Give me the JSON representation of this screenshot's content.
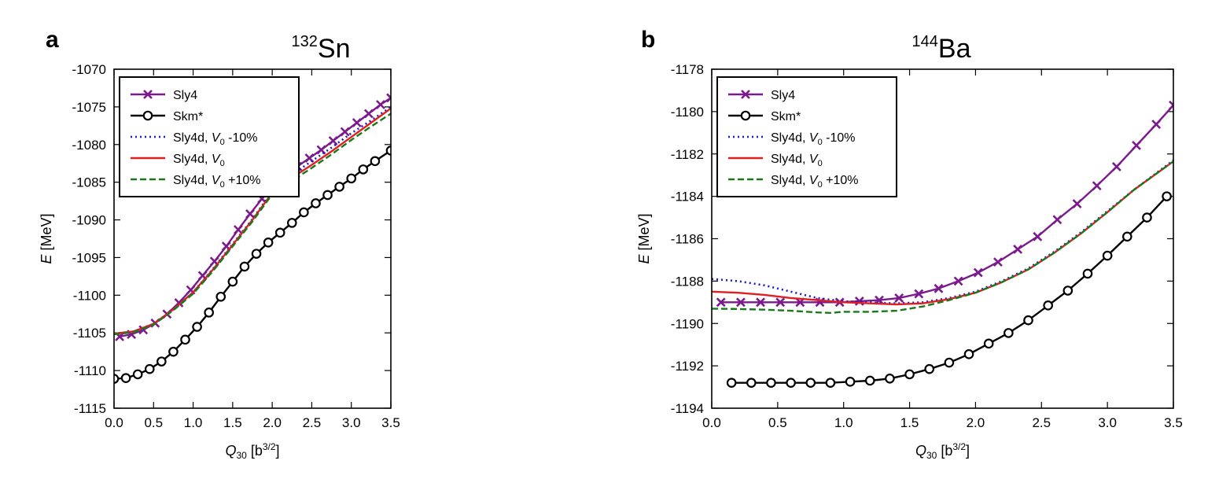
{
  "chart_data": [
    {
      "type": "line",
      "panel": "a",
      "title": {
        "mass": "132",
        "symbol": "Sn"
      },
      "xlabel": {
        "var": "Q",
        "sub": "30",
        "unit_pre": " [b",
        "unit_sup": "3/2",
        "unit_post": "]"
      },
      "ylabel": {
        "var": "E",
        "rest": " [MeV]"
      },
      "xlim": [
        0,
        3.5
      ],
      "ylim": [
        -1115,
        -1070
      ],
      "xticks": [
        0,
        0.5,
        1,
        1.5,
        2,
        2.5,
        3,
        3.5
      ],
      "xtick_labels": [
        "0.0",
        "0.5",
        "1.0",
        "1.5",
        "2.0",
        "2.5",
        "3.0",
        "3.5"
      ],
      "yticks": [
        -1115,
        -1110,
        -1105,
        -1100,
        -1095,
        -1090,
        -1085,
        -1080,
        -1075,
        -1070
      ],
      "ytick_labels": [
        "-1115",
        "-1110",
        "-1105",
        "-1100",
        "-1095",
        "-1090",
        "-1085",
        "-1080",
        "-1075",
        "-1070"
      ],
      "legend_position": "top-left",
      "series": [
        {
          "id": "sly4",
          "legend": {
            "main": "Sly4"
          },
          "color": "#7b1a8c",
          "dash": "solid",
          "marker": "x",
          "x": [
            0.07,
            0.22,
            0.37,
            0.52,
            0.67,
            0.82,
            0.97,
            1.12,
            1.27,
            1.42,
            1.57,
            1.72,
            1.87,
            2.02,
            2.17,
            2.32,
            2.47,
            2.62,
            2.77,
            2.92,
            3.07,
            3.22,
            3.37,
            3.5
          ],
          "y": [
            -1105.5,
            -1105.2,
            -1104.6,
            -1103.7,
            -1102.5,
            -1101.0,
            -1099.3,
            -1097.4,
            -1095.5,
            -1093.5,
            -1091.3,
            -1089.2,
            -1087.2,
            -1085.5,
            -1084.1,
            -1082.9,
            -1081.8,
            -1080.7,
            -1079.5,
            -1078.3,
            -1077.1,
            -1075.9,
            -1074.7,
            -1073.8
          ]
        },
        {
          "id": "skm",
          "legend": {
            "main": "Skm*"
          },
          "color": "#000000",
          "dash": "solid",
          "marker": "o",
          "x": [
            0.0,
            0.15,
            0.3,
            0.45,
            0.6,
            0.75,
            0.9,
            1.05,
            1.2,
            1.35,
            1.5,
            1.65,
            1.8,
            1.95,
            2.1,
            2.25,
            2.4,
            2.55,
            2.7,
            2.85,
            3.0,
            3.15,
            3.3,
            3.5
          ],
          "y": [
            -1111.1,
            -1111.0,
            -1110.5,
            -1109.8,
            -1108.8,
            -1107.5,
            -1105.9,
            -1104.2,
            -1102.3,
            -1100.2,
            -1098.2,
            -1096.2,
            -1094.5,
            -1093.0,
            -1091.7,
            -1090.4,
            -1089.0,
            -1087.8,
            -1086.7,
            -1085.6,
            -1084.5,
            -1083.3,
            -1082.2,
            -1080.8
          ]
        },
        {
          "id": "sly4d_m10",
          "legend": {
            "main": "Sly4d, ",
            "var": "V",
            "sub": "0",
            "post": " -10%"
          },
          "color": "#1a1acc",
          "dash": "dotted",
          "marker": "none",
          "x": [
            0.0,
            0.25,
            0.5,
            0.75,
            1.0,
            1.25,
            1.5,
            1.75,
            2.0,
            2.25,
            2.5,
            2.75,
            3.0,
            3.25,
            3.5
          ],
          "y": [
            -1105.1,
            -1104.8,
            -1103.8,
            -1101.9,
            -1099.6,
            -1096.5,
            -1093.2,
            -1089.9,
            -1086.2,
            -1084.0,
            -1082.2,
            -1080.4,
            -1078.5,
            -1076.8,
            -1075.0
          ]
        },
        {
          "id": "sly4d",
          "legend": {
            "main": "Sly4d, ",
            "var": "V",
            "sub": "0",
            "post": ""
          },
          "color": "#e02020",
          "dash": "solid",
          "marker": "none",
          "x": [
            0.0,
            0.25,
            0.5,
            0.75,
            1.0,
            1.25,
            1.5,
            1.75,
            2.0,
            2.25,
            2.5,
            2.75,
            3.0,
            3.25,
            3.5
          ],
          "y": [
            -1105.1,
            -1104.8,
            -1103.8,
            -1101.9,
            -1099.6,
            -1096.6,
            -1093.3,
            -1090.0,
            -1086.4,
            -1084.4,
            -1082.7,
            -1080.9,
            -1079.0,
            -1077.1,
            -1075.2
          ]
        },
        {
          "id": "sly4d_p10",
          "legend": {
            "main": "Sly4d, ",
            "var": "V",
            "sub": "0",
            "post": " +10%"
          },
          "color": "#1a7a1a",
          "dash": "dashed",
          "marker": "none",
          "x": [
            0.0,
            0.25,
            0.5,
            0.75,
            1.0,
            1.25,
            1.5,
            1.75,
            2.0,
            2.25,
            2.5,
            2.75,
            3.0,
            3.25,
            3.5
          ],
          "y": [
            -1105.2,
            -1104.9,
            -1103.9,
            -1102.0,
            -1099.8,
            -1096.8,
            -1093.5,
            -1090.2,
            -1086.6,
            -1084.8,
            -1083.1,
            -1081.3,
            -1079.4,
            -1077.6,
            -1075.9
          ]
        }
      ]
    },
    {
      "type": "line",
      "panel": "b",
      "title": {
        "mass": "144",
        "symbol": "Ba"
      },
      "xlabel": {
        "var": "Q",
        "sub": "30",
        "unit_pre": " [b",
        "unit_sup": "3/2",
        "unit_post": "]"
      },
      "ylabel": {
        "var": "E",
        "rest": " [MeV]"
      },
      "xlim": [
        0,
        3.5
      ],
      "ylim": [
        -1194,
        -1178
      ],
      "xticks": [
        0,
        0.5,
        1,
        1.5,
        2,
        2.5,
        3,
        3.5
      ],
      "xtick_labels": [
        "0.0",
        "0.5",
        "1.0",
        "1.5",
        "2.0",
        "2.5",
        "3.0",
        "3.5"
      ],
      "yticks": [
        -1194,
        -1192,
        -1190,
        -1188,
        -1186,
        -1184,
        -1182,
        -1180,
        -1178
      ],
      "ytick_labels": [
        "-1194",
        "-1192",
        "-1190",
        "-1188",
        "-1186",
        "-1184",
        "-1182",
        "-1180",
        "-1178"
      ],
      "legend_position": "top-left",
      "series": [
        {
          "id": "sly4",
          "legend": {
            "main": "Sly4"
          },
          "color": "#7b1a8c",
          "dash": "solid",
          "marker": "x",
          "x": [
            0.07,
            0.22,
            0.37,
            0.52,
            0.67,
            0.82,
            0.97,
            1.12,
            1.27,
            1.42,
            1.57,
            1.72,
            1.87,
            2.02,
            2.17,
            2.32,
            2.47,
            2.62,
            2.77,
            2.92,
            3.07,
            3.22,
            3.37,
            3.5
          ],
          "y": [
            -1189.0,
            -1189.0,
            -1189.0,
            -1189.0,
            -1189.0,
            -1189.0,
            -1189.0,
            -1188.95,
            -1188.9,
            -1188.8,
            -1188.6,
            -1188.35,
            -1188.0,
            -1187.6,
            -1187.1,
            -1186.5,
            -1185.9,
            -1185.1,
            -1184.35,
            -1183.5,
            -1182.6,
            -1181.6,
            -1180.6,
            -1179.7
          ]
        },
        {
          "id": "skm",
          "legend": {
            "main": "Skm*"
          },
          "color": "#000000",
          "dash": "solid",
          "marker": "o",
          "x": [
            0.15,
            0.3,
            0.45,
            0.6,
            0.75,
            0.9,
            1.05,
            1.2,
            1.35,
            1.5,
            1.65,
            1.8,
            1.95,
            2.1,
            2.25,
            2.4,
            2.55,
            2.7,
            2.85,
            3.0,
            3.15,
            3.3,
            3.45
          ],
          "y": [
            -1192.8,
            -1192.8,
            -1192.8,
            -1192.8,
            -1192.8,
            -1192.8,
            -1192.75,
            -1192.7,
            -1192.6,
            -1192.4,
            -1192.15,
            -1191.85,
            -1191.45,
            -1190.95,
            -1190.45,
            -1189.85,
            -1189.15,
            -1188.45,
            -1187.65,
            -1186.8,
            -1185.9,
            -1185.0,
            -1184.0
          ]
        },
        {
          "id": "sly4d_m10",
          "legend": {
            "main": "Sly4d, ",
            "var": "V",
            "sub": "0",
            "post": " -10%"
          },
          "color": "#1a1acc",
          "dash": "dotted",
          "marker": "none",
          "x": [
            0.0,
            0.2,
            0.4,
            0.6,
            0.8,
            1.0,
            1.2,
            1.4,
            1.6,
            1.8,
            2.0,
            2.2,
            2.4,
            2.6,
            2.8,
            3.0,
            3.2,
            3.5
          ],
          "y": [
            -1187.9,
            -1188.0,
            -1188.2,
            -1188.5,
            -1188.8,
            -1188.95,
            -1189.0,
            -1189.05,
            -1189.0,
            -1188.8,
            -1188.5,
            -1188.0,
            -1187.4,
            -1186.6,
            -1185.7,
            -1184.7,
            -1183.7,
            -1182.3
          ]
        },
        {
          "id": "sly4d",
          "legend": {
            "main": "Sly4d, ",
            "var": "V",
            "sub": "0",
            "post": ""
          },
          "color": "#e02020",
          "dash": "solid",
          "marker": "none",
          "x": [
            0.0,
            0.2,
            0.4,
            0.6,
            0.8,
            1.0,
            1.2,
            1.4,
            1.6,
            1.8,
            2.0,
            2.2,
            2.4,
            2.6,
            2.8,
            3.0,
            3.2,
            3.5
          ],
          "y": [
            -1188.5,
            -1188.55,
            -1188.65,
            -1188.8,
            -1188.9,
            -1189.0,
            -1189.05,
            -1189.1,
            -1189.05,
            -1188.85,
            -1188.55,
            -1188.05,
            -1187.45,
            -1186.65,
            -1185.75,
            -1184.75,
            -1183.7,
            -1182.35
          ]
        },
        {
          "id": "sly4d_p10",
          "legend": {
            "main": "Sly4d, ",
            "var": "V",
            "sub": "0",
            "post": " +10%"
          },
          "color": "#1a7a1a",
          "dash": "dashed",
          "marker": "none",
          "x": [
            0.0,
            0.2,
            0.4,
            0.6,
            0.8,
            0.9,
            1.0,
            1.2,
            1.4,
            1.6,
            1.8,
            2.0,
            2.2,
            2.4,
            2.6,
            2.8,
            3.0,
            3.2,
            3.5
          ],
          "y": [
            -1189.3,
            -1189.32,
            -1189.35,
            -1189.4,
            -1189.48,
            -1189.5,
            -1189.45,
            -1189.45,
            -1189.4,
            -1189.2,
            -1188.9,
            -1188.55,
            -1188.05,
            -1187.45,
            -1186.65,
            -1185.75,
            -1184.75,
            -1183.7,
            -1182.35
          ]
        }
      ]
    }
  ]
}
